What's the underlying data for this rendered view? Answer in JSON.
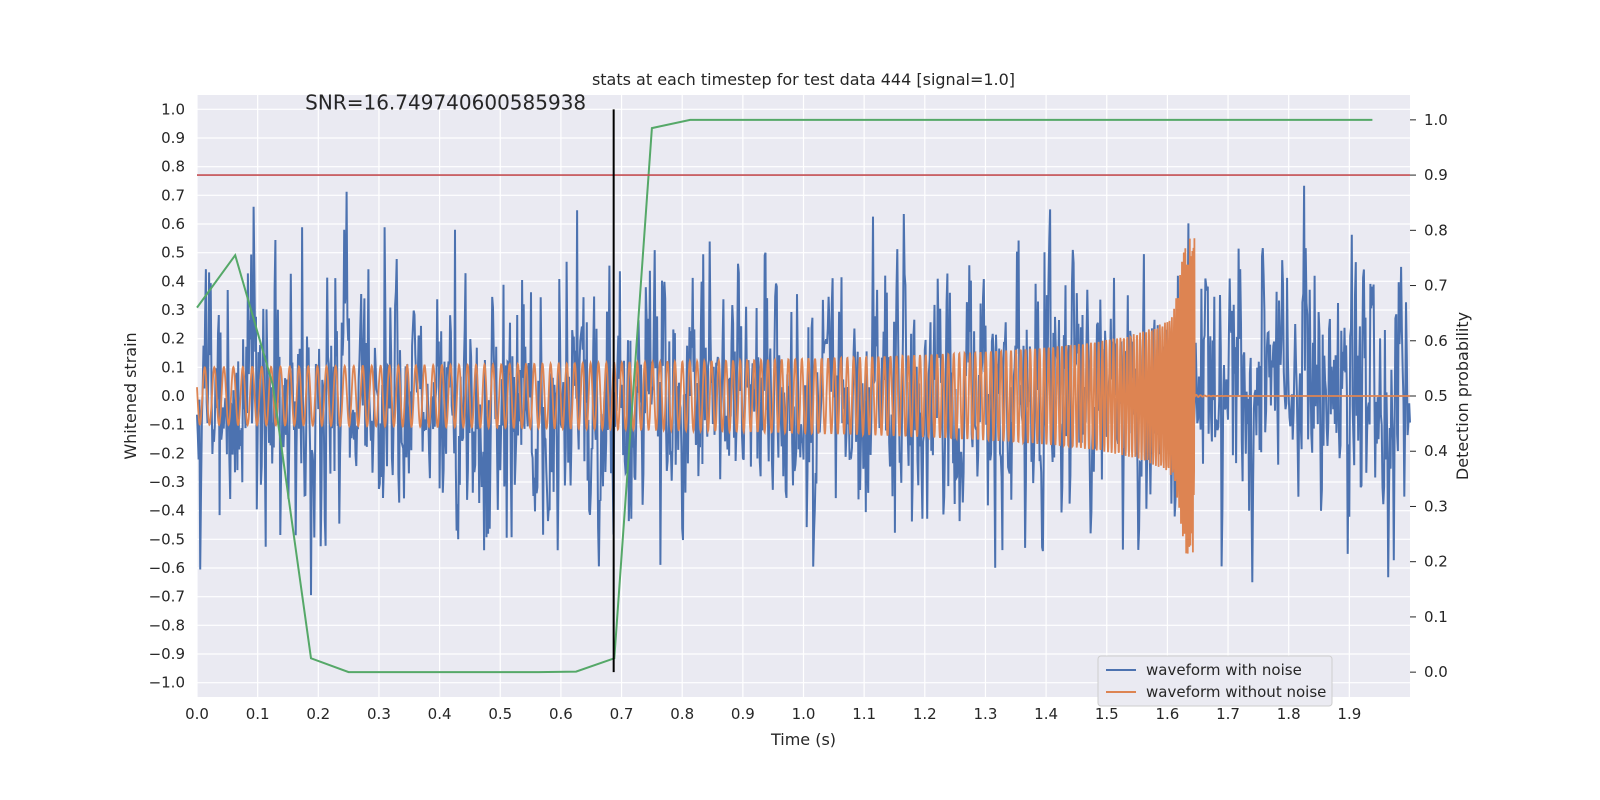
{
  "chart_data": {
    "type": "line",
    "title": "stats at each timestep for test data 444 [signal=1.0]",
    "xlabel": "Time (s)",
    "ylabel": "Whitened strain",
    "y2label": "Detection probability",
    "xlim": [
      0.0,
      2.0
    ],
    "ylim": [
      -1.05,
      1.05
    ],
    "y2lim": [
      -0.045,
      1.045
    ],
    "xticks": [
      "0.0",
      "0.1",
      "0.2",
      "0.3",
      "0.4",
      "0.5",
      "0.6",
      "0.7",
      "0.8",
      "0.9",
      "1.0",
      "1.1",
      "1.2",
      "1.3",
      "1.4",
      "1.5",
      "1.6",
      "1.7",
      "1.8",
      "1.9"
    ],
    "yticks": [
      "1.0",
      "0.9",
      "0.8",
      "0.7",
      "0.6",
      "0.5",
      "0.4",
      "0.3",
      "0.2",
      "0.1",
      "0.0",
      "−0.1",
      "−0.2",
      "−0.3",
      "−0.4",
      "−0.5",
      "−0.6",
      "−0.7",
      "−0.8",
      "−0.9",
      "−1.0"
    ],
    "y2ticks": [
      "1.0",
      "0.9",
      "0.8",
      "0.7",
      "0.6",
      "0.5",
      "0.4",
      "0.3",
      "0.2",
      "0.1",
      "0.0"
    ],
    "grid": true,
    "legend_position": "lower right",
    "annotation": "SNR=16.749740600585938",
    "vertical_line_x": 0.687,
    "threshold_line": {
      "axis": "y2",
      "value": 0.9,
      "color": "#c44e52"
    },
    "colors": {
      "noise": "#4c72b0",
      "clean": "#dd8452",
      "probability": "#55a868",
      "threshold": "#c44e52",
      "vline": "#000000",
      "plot_bg": "#eaeaf2",
      "grid": "#ffffff"
    },
    "series": [
      {
        "name": "waveform with noise",
        "axis": "y",
        "style": "noisy",
        "amplitude_range": [
          -0.93,
          1.0
        ],
        "x_range": [
          0.0,
          2.0
        ]
      },
      {
        "name": "waveform without noise",
        "axis": "y",
        "style": "chirp",
        "merger_time": 1.645,
        "amplitude_start": 0.1,
        "amplitude_peak": 0.55,
        "x_range": [
          0.0,
          2.0
        ]
      },
      {
        "name": "",
        "axis": "y2",
        "style": "line",
        "x": [
          0.0,
          0.063,
          0.125,
          0.188,
          0.25,
          0.313,
          0.375,
          0.438,
          0.5,
          0.563,
          0.625,
          0.688,
          0.75,
          0.813,
          0.875,
          0.938,
          1.0,
          1.25,
          1.5,
          1.75,
          1.938
        ],
        "y": [
          0.66,
          0.755,
          0.52,
          0.025,
          0.0,
          0.0,
          0.0,
          0.0,
          0.0,
          0.0,
          0.001,
          0.025,
          0.985,
          1.0,
          1.0,
          1.0,
          1.0,
          1.0,
          1.0,
          1.0,
          1.0
        ]
      }
    ]
  }
}
